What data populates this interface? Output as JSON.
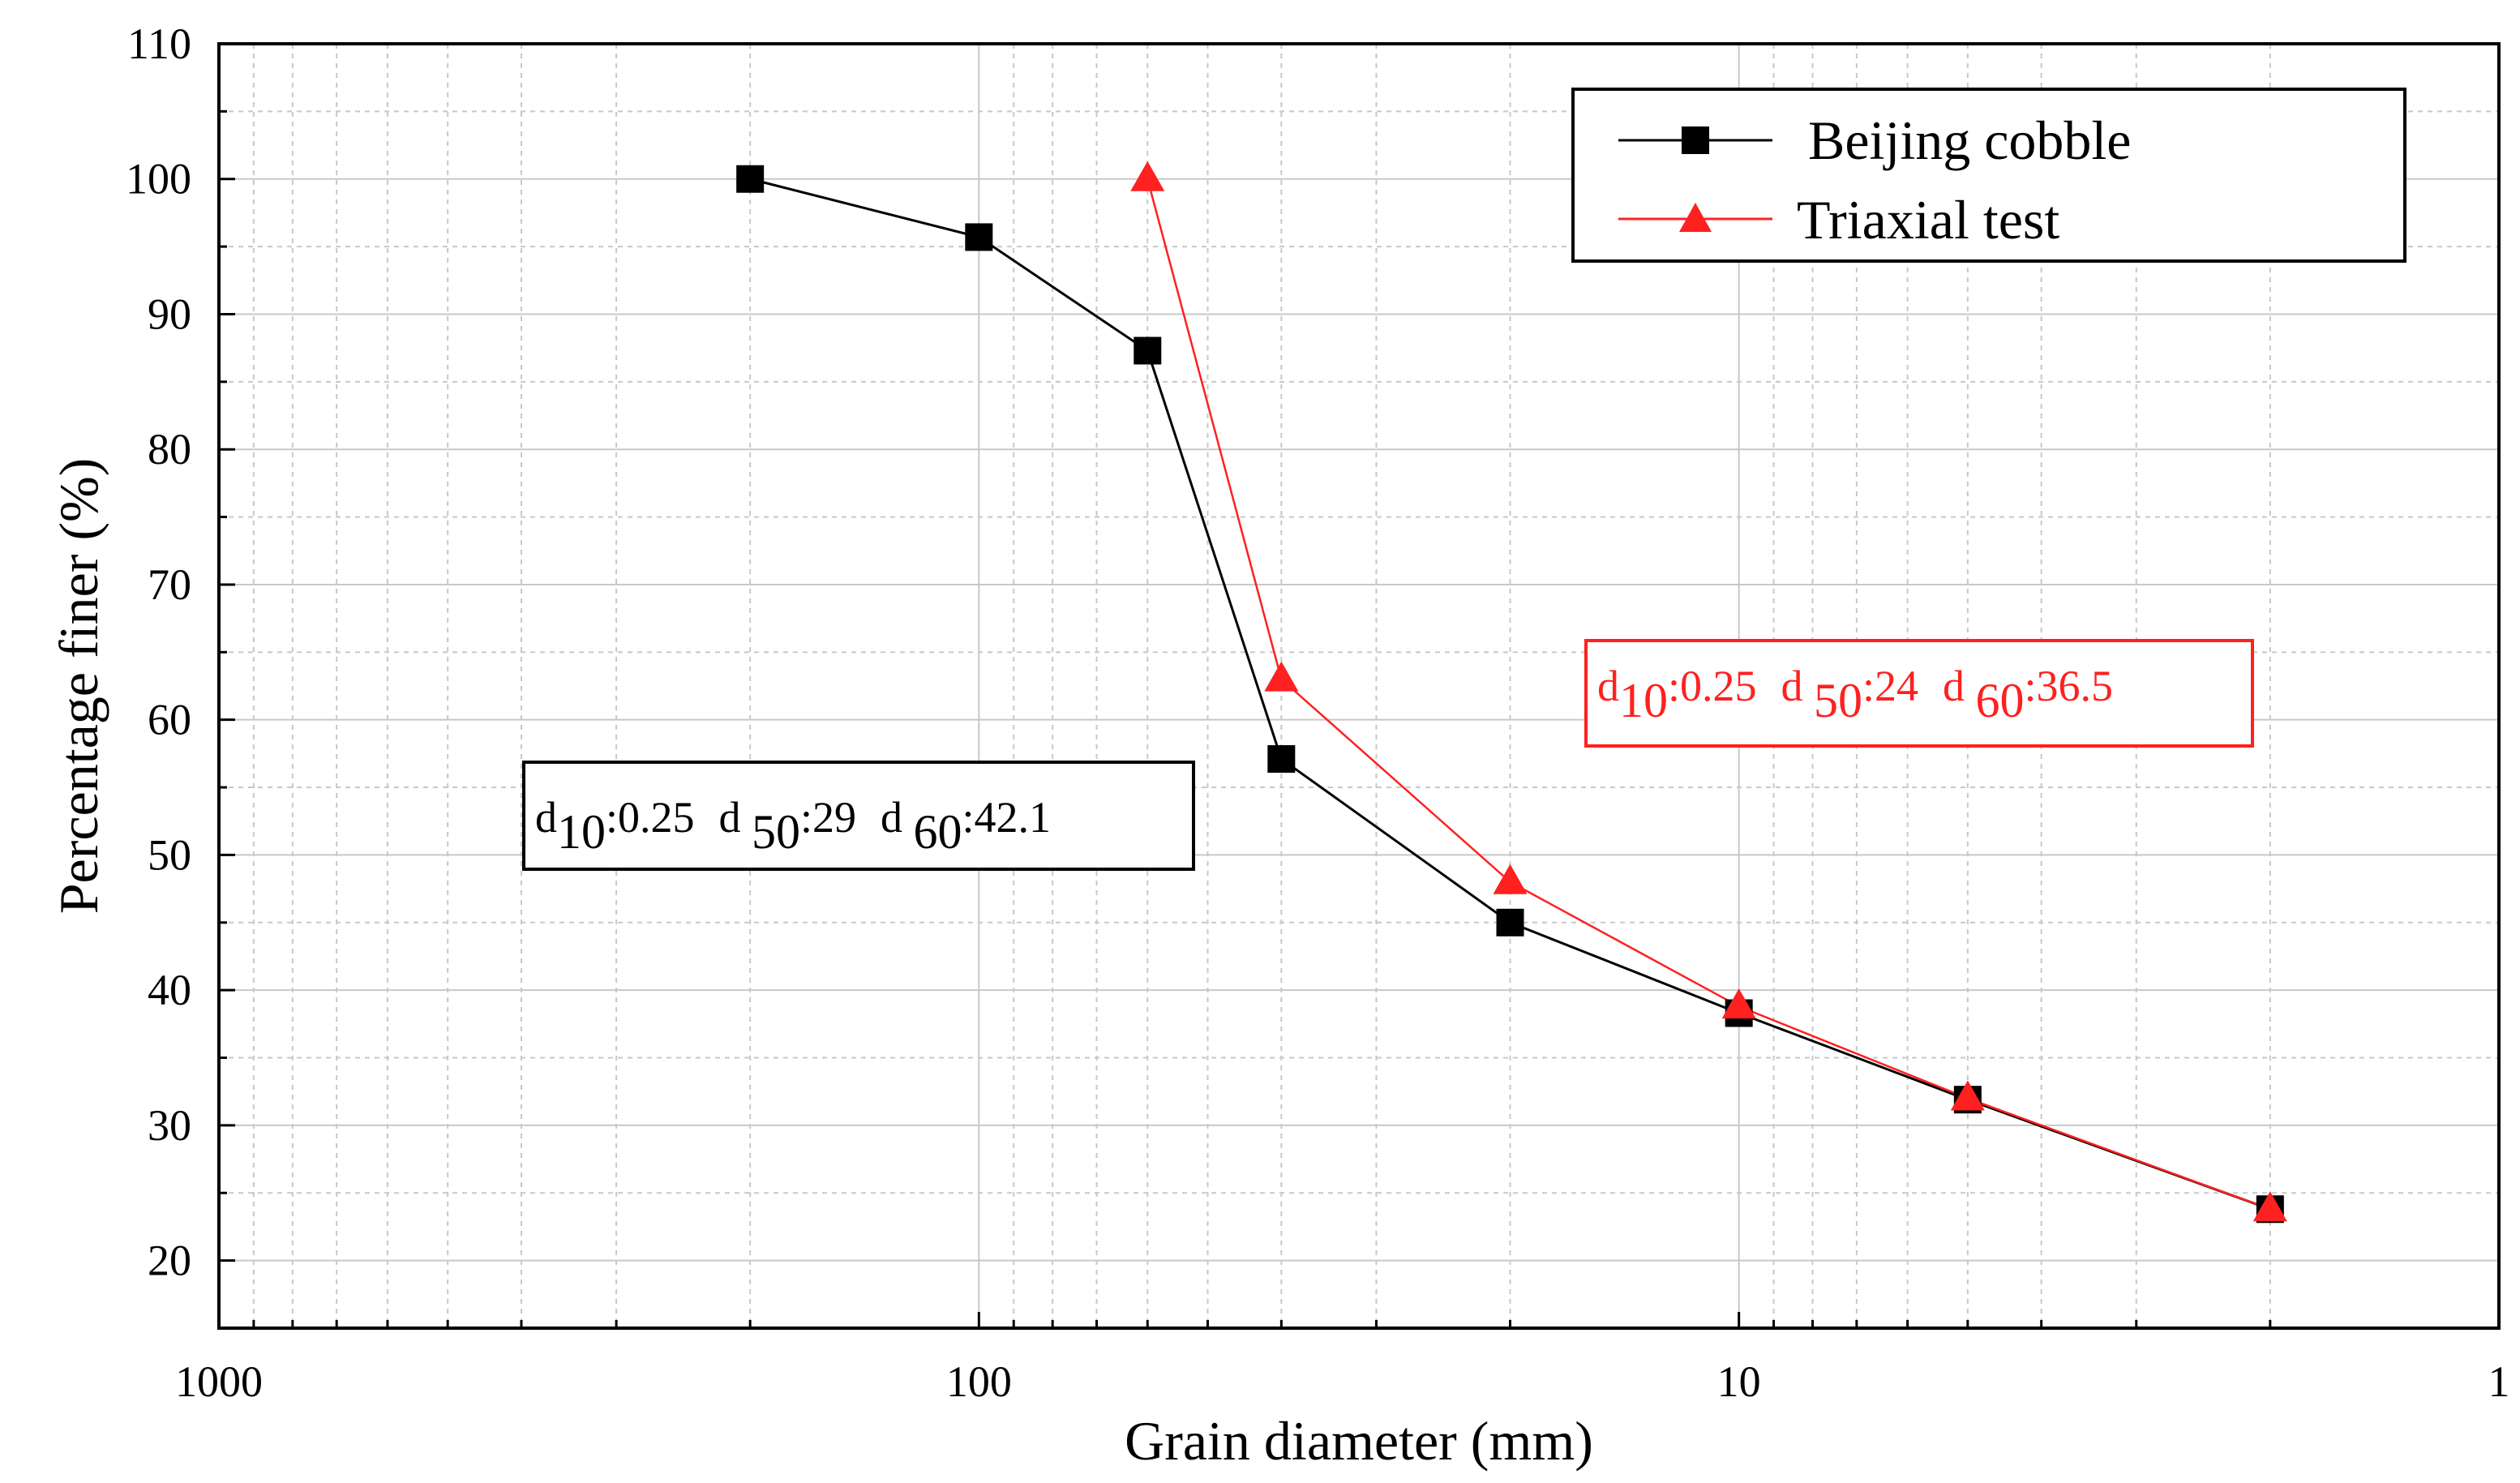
{
  "chart_data": {
    "type": "line",
    "xlabel": "Grain diameter (mm)",
    "ylabel": "Percentage finer (%)",
    "x_scale": "log",
    "x_reversed": true,
    "xlim": [
      1000,
      1
    ],
    "ylim": [
      15,
      110
    ],
    "x_ticks": [
      1000,
      100,
      10,
      1
    ],
    "x_tick_labels": [
      "1000",
      "100",
      "10",
      "1"
    ],
    "y_ticks": [
      20,
      30,
      40,
      50,
      60,
      70,
      80,
      90,
      100,
      110
    ],
    "y_tick_labels": [
      "20",
      "30",
      "40",
      "50",
      "60",
      "70",
      "80",
      "90",
      "100",
      "110"
    ],
    "grid": true,
    "legend_position": "top-right",
    "series": [
      {
        "name": "Beijing cobble",
        "color": "#000000",
        "marker": "square",
        "x": [
          200,
          100,
          60,
          40,
          20,
          10,
          5,
          2
        ],
        "y": [
          100,
          95.7,
          87.3,
          57.1,
          45,
          38.3,
          31.9,
          23.8
        ]
      },
      {
        "name": "Triaxial test",
        "color": "#ff2020",
        "marker": "triangle",
        "x": [
          60,
          40,
          20,
          10,
          5,
          2
        ],
        "y": [
          100,
          63,
          48,
          38.8,
          32,
          23.8
        ]
      }
    ],
    "annotations": {
      "black_box": {
        "d10": "0.25",
        "d50": "29",
        "d60": "42.1"
      },
      "red_box": {
        "d10": "0.25",
        "d50": "24",
        "d60": "36.5"
      }
    }
  }
}
